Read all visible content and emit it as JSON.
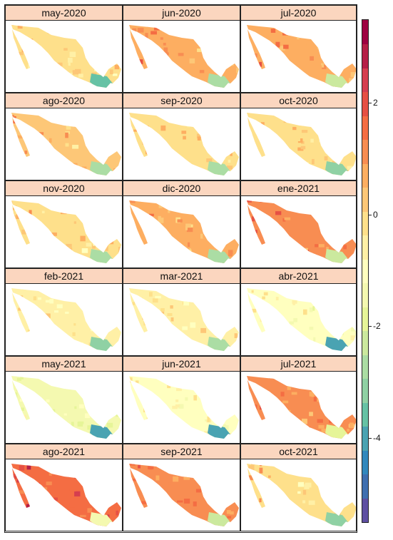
{
  "chart_data": {
    "type": "heatmap",
    "title": "",
    "panels": [
      {
        "label": "may-2020",
        "level": -0.2,
        "south": -3.6
      },
      {
        "label": "jun-2020",
        "level": 0.6,
        "south": -2.6
      },
      {
        "label": "jul-2020",
        "level": 0.9,
        "south": -2.2
      },
      {
        "label": "ago-2020",
        "level": 0.3,
        "south": -2.6
      },
      {
        "label": "sep-2020",
        "level": -0.1,
        "south": -2.8
      },
      {
        "label": "oct-2020",
        "level": 0.0,
        "south": -3.2
      },
      {
        "label": "nov-2020",
        "level": -0.1,
        "south": -2.6
      },
      {
        "label": "dic-2020",
        "level": 0.6,
        "south": -2.6
      },
      {
        "label": "ene-2021",
        "level": 1.2,
        "south": -2.2
      },
      {
        "label": "feb-2021",
        "level": -0.4,
        "south": -3.0
      },
      {
        "label": "mar-2021",
        "level": -0.4,
        "south": -2.8
      },
      {
        "label": "abr-2021",
        "level": -0.9,
        "south": -3.8
      },
      {
        "label": "may-2021",
        "level": -1.6,
        "south": -4.2
      },
      {
        "label": "jun-2021",
        "level": -0.9,
        "south": -3.8
      },
      {
        "label": "jul-2021",
        "level": 1.0,
        "south": -2.0
      },
      {
        "label": "ago-2021",
        "level": 1.6,
        "south": -1.6
      },
      {
        "label": "sep-2021",
        "level": 1.0,
        "south": -2.2
      },
      {
        "label": "oct-2021",
        "level": -0.1,
        "south": -3.0
      }
    ],
    "colorbar": {
      "range": [
        -5.5,
        3.5
      ],
      "ticks": [
        2,
        0,
        -2,
        -4
      ],
      "tick_labels": [
        "2",
        "0",
        "-2",
        "-4"
      ],
      "colors": [
        "#5e4fa2",
        "#3f6fb0",
        "#3288bd",
        "#4aa3b2",
        "#66c2a5",
        "#8fd1a4",
        "#abdda4",
        "#cbe99e",
        "#e6f598",
        "#f4f9b0",
        "#ffffbf",
        "#fff0a6",
        "#fee08b",
        "#fdc777",
        "#fdae61",
        "#f88d52",
        "#f46d43",
        "#e65044",
        "#d53e4f",
        "#b51f47",
        "#9e0142"
      ]
    },
    "layout": {
      "columns": 3,
      "rows": 6
    }
  }
}
